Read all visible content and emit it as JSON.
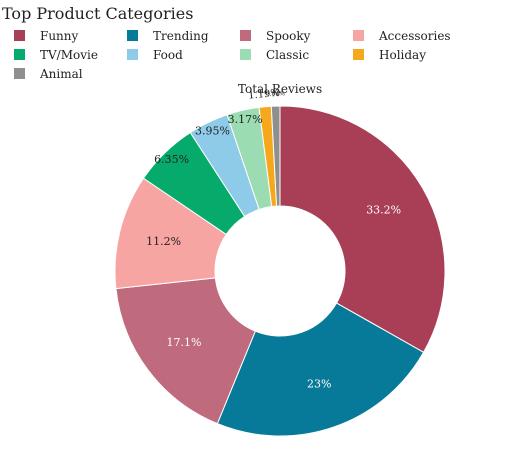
{
  "chart_data": {
    "type": "pie",
    "donut": true,
    "title": "Top Product Categories",
    "subtitle": "Total Reviews",
    "legend_position": "top",
    "series": [
      {
        "name": "Funny",
        "percent": 33.2,
        "label": "33.2%",
        "color": "#a93e57"
      },
      {
        "name": "Trending",
        "percent": 23.0,
        "label": "23%",
        "color": "#087a99"
      },
      {
        "name": "Spooky",
        "percent": 17.1,
        "label": "17.1%",
        "color": "#bf6b7d"
      },
      {
        "name": "Accessories",
        "percent": 11.2,
        "label": "11.2%",
        "color": "#f6a5a2"
      },
      {
        "name": "TV/Movie",
        "percent": 6.35,
        "label": "6.35%",
        "color": "#06ab6c"
      },
      {
        "name": "Food",
        "percent": 3.95,
        "label": "3.95%",
        "color": "#8ecbe9"
      },
      {
        "name": "Classic",
        "percent": 3.17,
        "label": "3.17%",
        "color": "#9cdcb3"
      },
      {
        "name": "Holiday",
        "percent": 1.19,
        "label": "1.19%",
        "color": "#f6a81d"
      },
      {
        "name": "Animal",
        "percent": 0.84,
        "label": "0.84%",
        "color": "#8f8f8f"
      }
    ]
  }
}
